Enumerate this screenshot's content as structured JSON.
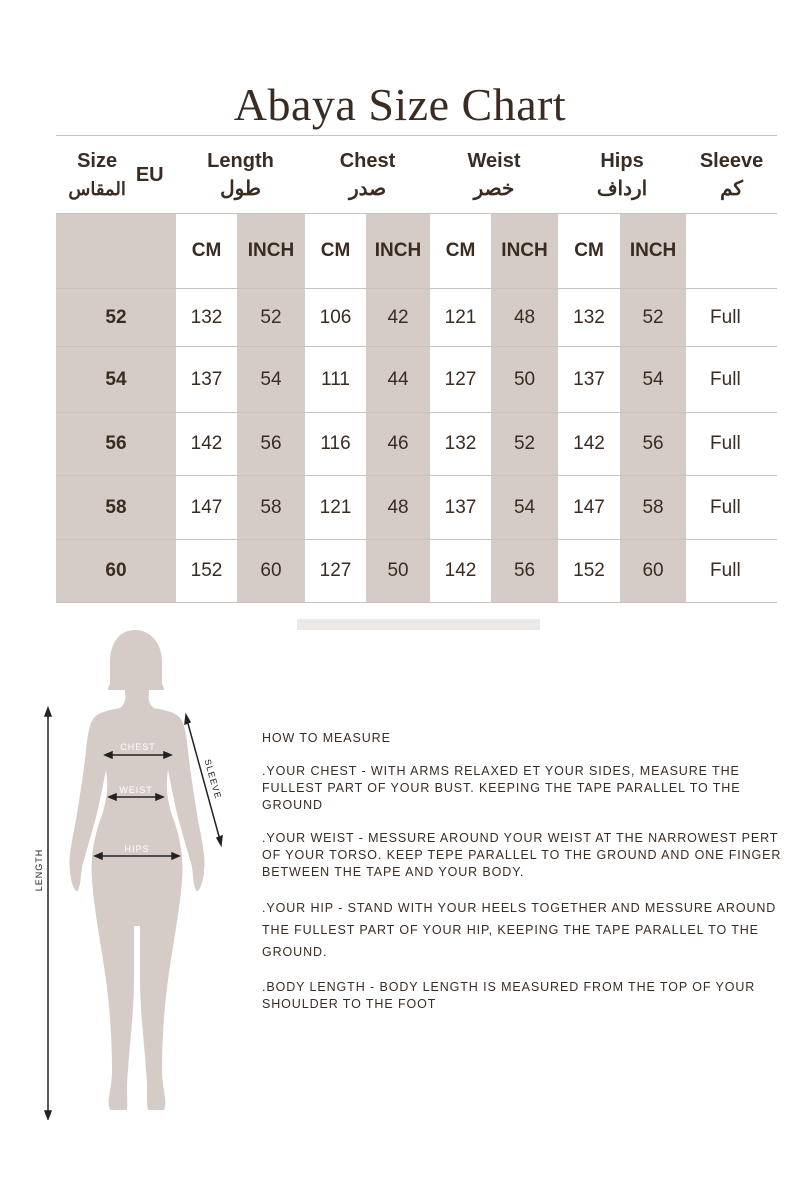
{
  "title": "Abaya Size Chart",
  "colors": {
    "shade": "#d6ccc7",
    "text": "#3b2c22",
    "figure": "#d6ccc7"
  },
  "headers": {
    "size": "Size",
    "size_ar": "المقاس",
    "eu": "EU",
    "length": "Length",
    "length_ar": "طول",
    "chest": "Chest",
    "chest_ar": "صدر",
    "weist": "Weist",
    "weist_ar": "خصر",
    "hips": "Hips",
    "hips_ar": "ارداف",
    "sleeve": "Sleeve",
    "sleeve_ar": "كم"
  },
  "units": {
    "cm": "CM",
    "inch": "INCH"
  },
  "rows": [
    {
      "size": "52",
      "length_cm": "132",
      "length_in": "52",
      "chest_cm": "106",
      "chest_in": "42",
      "weist_cm": "121",
      "weist_in": "48",
      "hips_cm": "132",
      "hips_in": "52",
      "sleeve": "Full"
    },
    {
      "size": "54",
      "length_cm": "137",
      "length_in": "54",
      "chest_cm": "111",
      "chest_in": "44",
      "weist_cm": "127",
      "weist_in": "50",
      "hips_cm": "137",
      "hips_in": "54",
      "sleeve": "Full"
    },
    {
      "size": "56",
      "length_cm": "142",
      "length_in": "56",
      "chest_cm": "116",
      "chest_in": "46",
      "weist_cm": "132",
      "weist_in": "52",
      "hips_cm": "142",
      "hips_in": "56",
      "sleeve": "Full"
    },
    {
      "size": "58",
      "length_cm": "147",
      "length_in": "58",
      "chest_cm": "121",
      "chest_in": "48",
      "weist_cm": "137",
      "weist_in": "54",
      "hips_cm": "147",
      "hips_in": "58",
      "sleeve": "Full"
    },
    {
      "size": "60",
      "length_cm": "152",
      "length_in": "60",
      "chest_cm": "127",
      "chest_in": "50",
      "weist_cm": "142",
      "weist_in": "56",
      "hips_cm": "152",
      "hips_in": "60",
      "sleeve": "Full"
    }
  ],
  "figure_labels": {
    "chest": "CHEST",
    "weist": "WEIST",
    "hips": "HIPS",
    "sleeve": "SLEEVE",
    "length": "LENGTH"
  },
  "howto": {
    "heading": "HOW TO MEASURE",
    "chest": ".YOUR CHEST - WITH ARMS RELAXED ET YOUR SIDES, MEASURE THE FULLEST PART OF YOUR BUST. KEEPING THE TAPE PARALLEL TO THE GROUND",
    "weist": ".YOUR WEIST - MESSURE AROUND YOUR WEIST AT THE NARROWEST PERT OF YOUR TORSO. KEEP TEPE PARALLEL TO THE GROUND AND ONE FINGER BETWEEN THE TAPE AND YOUR BODY.",
    "hip": ".YOUR HIP - STAND WITH YOUR HEELS TOGETHER AND MESSURE AROUND THE FULLEST PART OF YOUR HIP, KEEPING THE TAPE PARALLEL TO THE GROUND.",
    "length": ".BODY LENGTH - BODY LENGTH IS MEASURED FROM THE TOP OF YOUR SHOULDER TO THE FOOT"
  }
}
